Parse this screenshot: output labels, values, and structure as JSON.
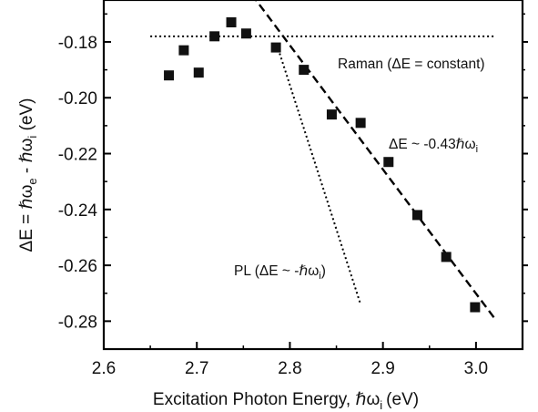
{
  "chart_data": {
    "type": "scatter",
    "xlabel": "Excitation Photon Energy, ℏω",
    "xlabel_subscript": "i",
    "xlabel_unit": "(eV)",
    "ylabel": "ΔE = ℏω",
    "ylabel_sub1": "e",
    "ylabel_mid": " - ℏω",
    "ylabel_sub2": "i",
    "ylabel_unit": " (eV)",
    "xlim": [
      2.6,
      3.05
    ],
    "ylim": [
      -0.29,
      -0.165
    ],
    "x_ticks": [
      2.6,
      2.7,
      2.8,
      2.9,
      3.0
    ],
    "x_tick_labels": [
      "2.6",
      "2.7",
      "2.8",
      "2.9",
      "3.0"
    ],
    "y_ticks": [
      -0.18,
      -0.2,
      -0.22,
      -0.24,
      -0.26,
      -0.28
    ],
    "y_tick_labels": [
      "-0.18",
      "-0.20",
      "-0.22",
      "-0.24",
      "-0.26",
      "-0.28"
    ],
    "points": [
      {
        "x": 2.67,
        "y": -0.192
      },
      {
        "x": 2.686,
        "y": -0.183
      },
      {
        "x": 2.702,
        "y": -0.191
      },
      {
        "x": 2.719,
        "y": -0.178
      },
      {
        "x": 2.737,
        "y": -0.173
      },
      {
        "x": 2.753,
        "y": -0.177
      },
      {
        "x": 2.785,
        "y": -0.182
      },
      {
        "x": 2.815,
        "y": -0.19
      },
      {
        "x": 2.845,
        "y": -0.206
      },
      {
        "x": 2.876,
        "y": -0.209
      },
      {
        "x": 2.906,
        "y": -0.223
      },
      {
        "x": 2.937,
        "y": -0.242
      },
      {
        "x": 2.968,
        "y": -0.257
      },
      {
        "x": 2.999,
        "y": -0.275
      }
    ],
    "lines": [
      {
        "name": "raman",
        "style": "dotted",
        "x": [
          2.65,
          3.02
        ],
        "y": [
          -0.178,
          -0.178
        ]
      },
      {
        "name": "fit",
        "style": "dashed",
        "x": [
          2.759,
          3.02
        ],
        "y": [
          -0.163,
          -0.279
        ]
      },
      {
        "name": "pl",
        "style": "dotted",
        "x": [
          2.786,
          2.876
        ],
        "y": [
          -0.181,
          -0.274
        ]
      }
    ],
    "annotations": {
      "raman": "Raman (ΔE = constant)",
      "slope_prefix": "ΔE ~ -0.43ℏω",
      "slope_sub": "i",
      "pl_prefix": "PL (ΔE ~ -ℏω",
      "pl_sub": "i",
      "pl_suffix": ")"
    }
  }
}
